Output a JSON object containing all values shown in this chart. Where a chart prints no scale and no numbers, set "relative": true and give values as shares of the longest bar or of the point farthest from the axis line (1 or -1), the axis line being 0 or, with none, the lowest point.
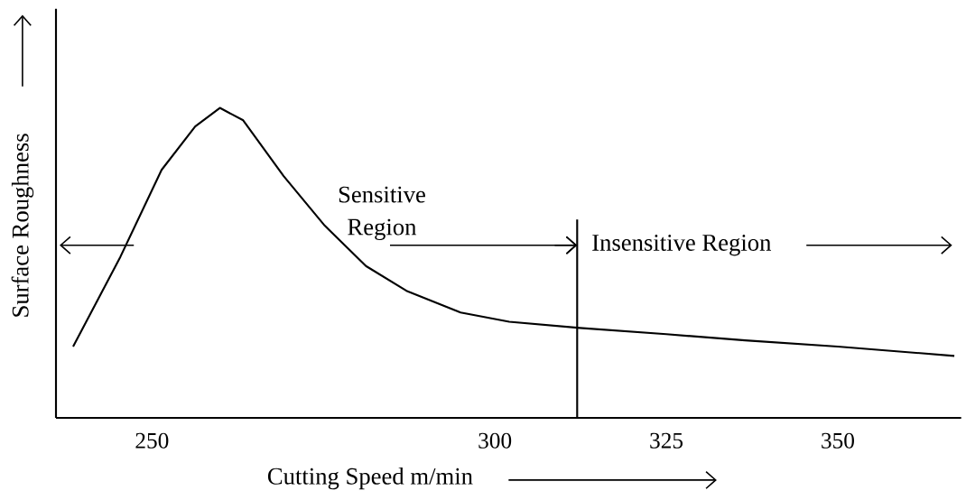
{
  "chart_data": {
    "type": "line",
    "xlabel": "Cutting Speed m/min",
    "ylabel": "Surface Roughness",
    "relative": true,
    "x": [
      238.5,
      245.4,
      251.4,
      256.3,
      259.9,
      263.3,
      269.2,
      275.2,
      281.2,
      287.1,
      295.0,
      302.1,
      312.4,
      325,
      336.5,
      350,
      367
    ],
    "values": [
      0.23,
      0.52,
      0.8,
      0.94,
      1.0,
      0.96,
      0.78,
      0.62,
      0.49,
      0.41,
      0.34,
      0.31,
      0.29,
      0.27,
      0.25,
      0.23,
      0.2
    ],
    "color": "#000000",
    "xlim": [
      236,
      368
    ],
    "xticks": [
      250,
      300,
      325,
      350
    ],
    "ref_lines": [
      {
        "axis": "x",
        "value": 312
      }
    ],
    "annotations": [
      "Sensitive Region",
      "Insensitive Region"
    ],
    "tick_labels": "x",
    "grid": false,
    "marker": "none",
    "line_style": "solid"
  }
}
